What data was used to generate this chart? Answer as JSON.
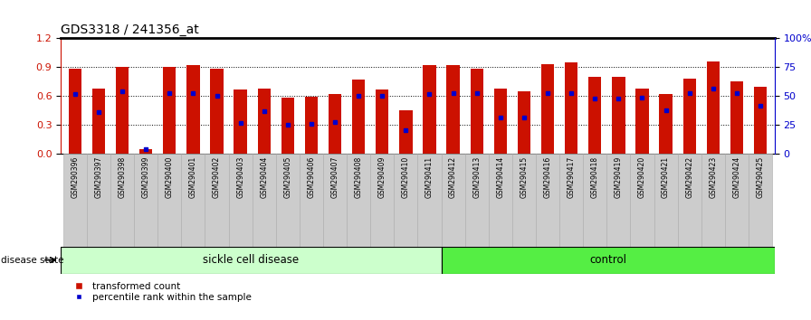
{
  "title": "GDS3318 / 241356_at",
  "samples": [
    "GSM290396",
    "GSM290397",
    "GSM290398",
    "GSM290399",
    "GSM290400",
    "GSM290401",
    "GSM290402",
    "GSM290403",
    "GSM290404",
    "GSM290405",
    "GSM290406",
    "GSM290407",
    "GSM290408",
    "GSM290409",
    "GSM290410",
    "GSM290411",
    "GSM290412",
    "GSM290413",
    "GSM290414",
    "GSM290415",
    "GSM290416",
    "GSM290417",
    "GSM290418",
    "GSM290419",
    "GSM290420",
    "GSM290421",
    "GSM290422",
    "GSM290423",
    "GSM290424",
    "GSM290425"
  ],
  "red_values": [
    0.88,
    0.68,
    0.9,
    0.05,
    0.9,
    0.92,
    0.88,
    0.67,
    0.68,
    0.58,
    0.59,
    0.62,
    0.77,
    0.67,
    0.45,
    0.92,
    0.92,
    0.88,
    0.68,
    0.65,
    0.93,
    0.95,
    0.8,
    0.8,
    0.68,
    0.62,
    0.78,
    0.96,
    0.75,
    0.7
  ],
  "blue_values": [
    0.62,
    0.43,
    0.65,
    0.05,
    0.63,
    0.63,
    0.6,
    0.32,
    0.44,
    0.3,
    0.31,
    0.33,
    0.6,
    0.6,
    0.24,
    0.62,
    0.63,
    0.63,
    0.38,
    0.38,
    0.63,
    0.63,
    0.57,
    0.57,
    0.58,
    0.45,
    0.63,
    0.68,
    0.63,
    0.5
  ],
  "sickle_count": 16,
  "control_count": 14,
  "sickle_label": "sickle cell disease",
  "control_label": "control",
  "disease_state_label": "disease state",
  "legend_red": "transformed count",
  "legend_blue": "percentile rank within the sample",
  "ylim_left": [
    0,
    1.2
  ],
  "ylim_right": [
    0,
    100
  ],
  "left_yticks": [
    0,
    0.3,
    0.6,
    0.9,
    1.2
  ],
  "right_yticks": [
    0,
    25,
    50,
    75,
    100
  ],
  "bar_color": "#cc1100",
  "dot_color": "#0000cc",
  "bg_color": "#ffffff",
  "sickle_bg": "#ccffcc",
  "control_bg": "#55ee44",
  "tick_label_bg": "#cccccc",
  "fig_width": 8.96,
  "fig_height": 3.54,
  "dpi": 100
}
